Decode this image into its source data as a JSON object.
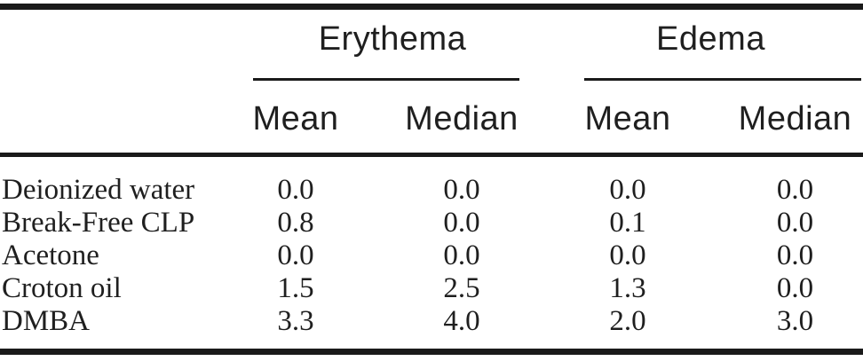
{
  "colors": {
    "text": "#1f1f1f",
    "rule": "#1a1a1a",
    "background": "#ffffff"
  },
  "table": {
    "groups": [
      {
        "label": "Erythema",
        "subcolumns": [
          "Mean",
          "Median"
        ]
      },
      {
        "label": "Edema",
        "subcolumns": [
          "Mean",
          "Median"
        ]
      }
    ],
    "rows": [
      {
        "label": "Deionized water",
        "values": [
          "0.0",
          "0.0",
          "0.0",
          "0.0"
        ]
      },
      {
        "label": "Break-Free CLP",
        "values": [
          "0.8",
          "0.0",
          "0.1",
          "0.0"
        ]
      },
      {
        "label": "Acetone",
        "values": [
          "0.0",
          "0.0",
          "0.0",
          "0.0"
        ]
      },
      {
        "label": "Croton oil",
        "values": [
          "1.5",
          "2.5",
          "1.3",
          "0.0"
        ]
      },
      {
        "label": "DMBA",
        "values": [
          "3.3",
          "4.0",
          "2.0",
          "3.0"
        ]
      }
    ]
  }
}
